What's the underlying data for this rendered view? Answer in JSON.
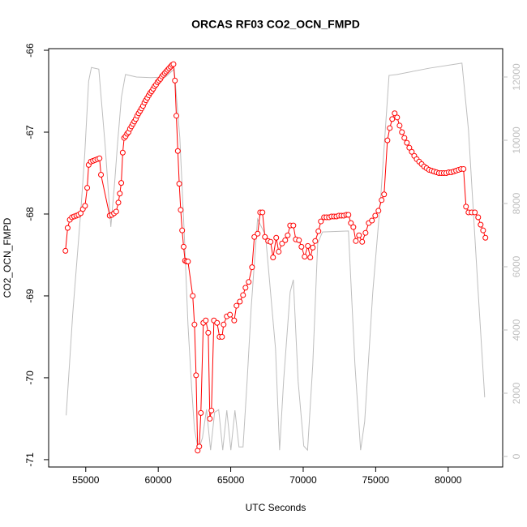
{
  "chart_data": {
    "type": "line",
    "title": "ORCAS RF03 CO2_OCN_FMPD",
    "x_label": "UTC Seconds",
    "y_label": "CO2_OCN_FMPD",
    "xlim": [
      52440,
      83760
    ],
    "xticks": [
      55000,
      60000,
      65000,
      70000,
      75000,
      80000
    ],
    "ylim": [
      -71.09,
      -65.98
    ],
    "yticks": [
      -66,
      -67,
      -68,
      -69,
      -70,
      -71
    ],
    "y2lim": [
      -333,
      12897
    ],
    "y2ticks": [
      0,
      2000,
      4000,
      6000,
      8000,
      10000,
      12000
    ],
    "series": [
      {
        "color": "#ff0000",
        "marker": "circle",
        "x": [
          53600,
          53750,
          53900,
          54050,
          54200,
          54350,
          54500,
          54650,
          54800,
          54950,
          55100,
          55200,
          55350,
          55500,
          55650,
          55800,
          55950,
          56050,
          56650,
          56800,
          56950,
          57100,
          57250,
          57350,
          57450,
          57550,
          57650,
          57750,
          57850,
          57950,
          58050,
          58150,
          58250,
          58350,
          58450,
          58550,
          58650,
          58750,
          58850,
          58950,
          59050,
          59150,
          59250,
          59350,
          59450,
          59550,
          59650,
          59750,
          59850,
          59950,
          60050,
          60150,
          60250,
          60350,
          60450,
          60550,
          60650,
          60750,
          60850,
          60950,
          61050,
          61150,
          61250,
          61350,
          61450,
          61550,
          61650,
          61750,
          61850,
          61950,
          62050,
          62380,
          62500,
          62610,
          62720,
          62830,
          62940,
          63110,
          63280,
          63450,
          63560,
          63670,
          63840,
          64060,
          64230,
          64400,
          64510,
          64730,
          64950,
          65240,
          65400,
          65630,
          65850,
          66020,
          66240,
          66470,
          66630,
          66860,
          67030,
          67190,
          67360,
          67580,
          67750,
          67920,
          68140,
          68310,
          68540,
          68760,
          68930,
          69100,
          69320,
          69490,
          69710,
          69880,
          70100,
          70320,
          70490,
          70660,
          70830,
          71050,
          71220,
          71440,
          71610,
          71780,
          71950,
          72120,
          72290,
          72460,
          72630,
          72800,
          72970,
          73120,
          73290,
          73460,
          73630,
          73850,
          74070,
          74300,
          74520,
          74740,
          74970,
          75190,
          75410,
          75580,
          75810,
          75970,
          76140,
          76310,
          76480,
          76650,
          76810,
          76980,
          77150,
          77320,
          77490,
          77660,
          77830,
          78000,
          78170,
          78340,
          78510,
          78680,
          78850,
          79020,
          79190,
          79360,
          79530,
          79700,
          79870,
          80040,
          80210,
          80380,
          80550,
          80720,
          80890,
          81060,
          81230,
          81400,
          81620,
          81840,
          82070,
          82240,
          82410,
          82570
        ],
        "values": [
          -68.45,
          -68.17,
          -68.07,
          -68.04,
          -68.03,
          -68.02,
          -68.01,
          -67.99,
          -67.94,
          -67.9,
          -67.68,
          -67.4,
          -67.36,
          -67.35,
          -67.34,
          -67.33,
          -67.32,
          -67.52,
          -68.02,
          -68.01,
          -67.99,
          -67.97,
          -67.86,
          -67.75,
          -67.62,
          -67.25,
          -67.07,
          -67.05,
          -67.02,
          -67.0,
          -66.96,
          -66.93,
          -66.9,
          -66.87,
          -66.84,
          -66.8,
          -66.77,
          -66.74,
          -66.71,
          -66.68,
          -66.64,
          -66.61,
          -66.58,
          -66.55,
          -66.52,
          -66.5,
          -66.47,
          -66.44,
          -66.42,
          -66.39,
          -66.37,
          -66.35,
          -66.32,
          -66.3,
          -66.28,
          -66.26,
          -66.24,
          -66.22,
          -66.2,
          -66.18,
          -66.17,
          -66.37,
          -66.8,
          -67.23,
          -67.63,
          -67.95,
          -68.2,
          -68.4,
          -68.57,
          -68.58,
          -68.58,
          -69.0,
          -69.35,
          -69.97,
          -70.89,
          -70.84,
          -70.43,
          -69.33,
          -69.3,
          -69.45,
          -70.5,
          -70.4,
          -69.3,
          -69.33,
          -69.5,
          -69.5,
          -69.35,
          -69.25,
          -69.23,
          -69.3,
          -69.12,
          -69.07,
          -68.99,
          -68.9,
          -68.83,
          -68.65,
          -68.28,
          -68.24,
          -67.98,
          -67.98,
          -68.28,
          -68.33,
          -68.34,
          -68.53,
          -68.29,
          -68.46,
          -68.36,
          -68.32,
          -68.26,
          -68.14,
          -68.14,
          -68.31,
          -68.32,
          -68.4,
          -68.52,
          -68.39,
          -68.53,
          -68.41,
          -68.33,
          -68.21,
          -68.09,
          -68.04,
          -68.04,
          -68.04,
          -68.03,
          -68.03,
          -68.03,
          -68.02,
          -68.02,
          -68.02,
          -68.01,
          -68.01,
          -68.11,
          -68.16,
          -68.33,
          -68.26,
          -68.34,
          -68.23,
          -68.11,
          -68.08,
          -68.02,
          -67.96,
          -67.83,
          -67.76,
          -67.1,
          -66.95,
          -66.84,
          -66.77,
          -66.82,
          -66.92,
          -67.0,
          -67.07,
          -67.13,
          -67.19,
          -67.24,
          -67.29,
          -67.33,
          -67.36,
          -67.39,
          -67.42,
          -67.44,
          -67.46,
          -67.47,
          -67.48,
          -67.49,
          -67.5,
          -67.5,
          -67.5,
          -67.5,
          -67.49,
          -67.49,
          -67.48,
          -67.47,
          -67.46,
          -67.45,
          -67.45,
          -67.91,
          -67.98,
          -67.98,
          -67.98,
          -68.04,
          -68.13,
          -68.2,
          -68.29
        ]
      },
      {
        "color": "#bebebe",
        "axis": "y2",
        "x": [
          53650,
          54100,
          54660,
          54930,
          55200,
          55390,
          55900,
          56340,
          56730,
          57000,
          57180,
          57460,
          57740,
          58500,
          59500,
          60500,
          61100,
          61490,
          61800,
          62050,
          62300,
          62500,
          62770,
          63050,
          63330,
          63610,
          63890,
          64170,
          64450,
          64730,
          65010,
          65290,
          65570,
          65850,
          66130,
          66410,
          66850,
          67400,
          68090,
          68370,
          68650,
          69100,
          69320,
          69650,
          70040,
          70300,
          70660,
          71000,
          71330,
          73120,
          73570,
          73960,
          74240,
          74800,
          75360,
          75920,
          76470,
          78710,
          80950,
          81400,
          82070,
          82520
        ],
        "values": [
          1300,
          4500,
          7770,
          9560,
          11870,
          12300,
          12250,
          9820,
          7260,
          8700,
          9820,
          11360,
          12080,
          12000,
          11980,
          12000,
          12250,
          10080,
          7000,
          4180,
          2200,
          850,
          200,
          590,
          1490,
          200,
          1400,
          1480,
          200,
          1460,
          200,
          1460,
          300,
          300,
          2380,
          4690,
          7510,
          7000,
          3410,
          200,
          2400,
          5200,
          5590,
          2380,
          330,
          200,
          2900,
          6740,
          7100,
          7130,
          2900,
          200,
          1100,
          5200,
          8280,
          12050,
          12080,
          12280,
          12440,
          10330,
          5200,
          1870
        ]
      }
    ]
  }
}
